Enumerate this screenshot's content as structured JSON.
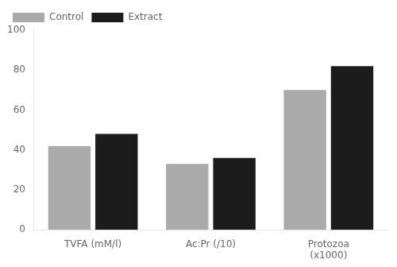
{
  "chart_data": {
    "type": "bar",
    "categories": [
      "TVFA (mM/l)",
      "Ac:Pr (/10)",
      "Protozoa\n(x1000)"
    ],
    "series": [
      {
        "name": "Control",
        "color": "#aaaaaa",
        "values": [
          42,
          33,
          70
        ]
      },
      {
        "name": "Extract",
        "color": "#1c1c1c",
        "values": [
          48,
          36,
          82
        ]
      }
    ],
    "ylim": [
      0,
      100
    ],
    "yticks": [
      0,
      20,
      40,
      60,
      80,
      100
    ],
    "grid": false,
    "legend": "upper left"
  }
}
